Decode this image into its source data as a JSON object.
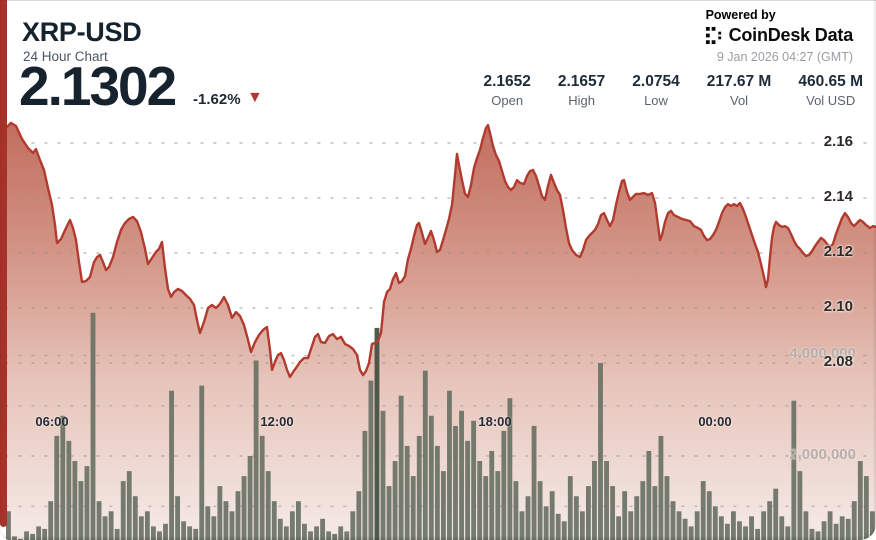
{
  "header": {
    "symbol": "XRP-USD",
    "subtitle": "24 Hour Chart",
    "price": "2.1302",
    "change": "-1.62%",
    "change_direction": "down",
    "triangle": "▼"
  },
  "brand": {
    "powered_by": "Powered by",
    "name": "CoinDesk Data",
    "timestamp": "9 Jan 2026 04:27 (GMT)"
  },
  "stats": [
    {
      "value": "2.1652",
      "label": "Open"
    },
    {
      "value": "2.1657",
      "label": "High"
    },
    {
      "value": "2.0754",
      "label": "Low"
    },
    {
      "value": "217.67 M",
      "label": "Vol"
    },
    {
      "value": "460.65 M",
      "label": "Vol USD"
    }
  ],
  "colors": {
    "accent_strip": "#a63229",
    "line": "#b23a2e",
    "volume_bar": "#6b7265",
    "volume_bar_highlight": "#41503f",
    "fill_top": "#bf6757",
    "fill_mid": "#d29384",
    "fill_low": "#e6c3b9",
    "fill_bottom": "#f5eae6",
    "grid_dot": "#9a9189",
    "change_triangle": "#b0372b"
  },
  "chart_data": {
    "type": "area",
    "title": "XRP-USD 24 Hour Chart",
    "legend": false,
    "grid": "dotted",
    "price_axis": {
      "side": "right",
      "range": [
        2.068,
        2.172
      ],
      "ticks": [
        {
          "label": "2.16",
          "value": 2.16
        },
        {
          "label": "2.14",
          "value": 2.14
        },
        {
          "label": "2.12",
          "value": 2.12
        },
        {
          "label": "2.10",
          "value": 2.1
        },
        {
          "label": "2.08",
          "value": 2.08
        }
      ]
    },
    "volume_axis": {
      "side": "right",
      "ticks": [
        {
          "label": "4,000,000",
          "value_m": 4
        },
        {
          "label": "2,000,000",
          "value_m": 2
        }
      ],
      "grid_m": [
        4,
        3,
        2,
        1
      ]
    },
    "time_axis": {
      "ticks": [
        {
          "label": "06:00",
          "f": 0.0529
        },
        {
          "label": "12:00",
          "f": 0.3115
        },
        {
          "label": "18:00",
          "f": 0.5621
        },
        {
          "label": "00:00",
          "f": 0.8149
        }
      ]
    },
    "price_series": [
      [
        0.0,
        2.1655
      ],
      [
        0.0057,
        2.1673
      ],
      [
        0.0115,
        2.1662
      ],
      [
        0.0184,
        2.1615
      ],
      [
        0.0253,
        2.1582
      ],
      [
        0.031,
        2.1564
      ],
      [
        0.0345,
        2.1578
      ],
      [
        0.0391,
        2.1538
      ],
      [
        0.0437,
        2.1502
      ],
      [
        0.0483,
        2.1436
      ],
      [
        0.0529,
        2.1375
      ],
      [
        0.0563,
        2.1302
      ],
      [
        0.0586,
        2.1236
      ],
      [
        0.0632,
        2.1251
      ],
      [
        0.069,
        2.1291
      ],
      [
        0.0736,
        2.132
      ],
      [
        0.077,
        2.1291
      ],
      [
        0.0805,
        2.1247
      ],
      [
        0.0839,
        2.1167
      ],
      [
        0.0874,
        2.1095
      ],
      [
        0.092,
        2.1098
      ],
      [
        0.0966,
        2.1113
      ],
      [
        0.1011,
        2.1167
      ],
      [
        0.1046,
        2.1185
      ],
      [
        0.108,
        2.1193
      ],
      [
        0.1115,
        2.1167
      ],
      [
        0.1149,
        2.1138
      ],
      [
        0.1184,
        2.1149
      ],
      [
        0.123,
        2.1185
      ],
      [
        0.1276,
        2.124
      ],
      [
        0.1322,
        2.1284
      ],
      [
        0.1368,
        2.1309
      ],
      [
        0.1414,
        2.1324
      ],
      [
        0.146,
        2.1331
      ],
      [
        0.1506,
        2.1316
      ],
      [
        0.1552,
        2.1276
      ],
      [
        0.1598,
        2.1215
      ],
      [
        0.1632,
        2.116
      ],
      [
        0.1678,
        2.1182
      ],
      [
        0.1724,
        2.1204
      ],
      [
        0.1759,
        2.1215
      ],
      [
        0.1793,
        2.124
      ],
      [
        0.1828,
        2.1145
      ],
      [
        0.1862,
        2.1069
      ],
      [
        0.1897,
        2.104
      ],
      [
        0.1931,
        2.1058
      ],
      [
        0.1977,
        2.1069
      ],
      [
        0.2023,
        2.1062
      ],
      [
        0.2069,
        2.1047
      ],
      [
        0.2115,
        2.1033
      ],
      [
        0.2161,
        2.1011
      ],
      [
        0.2195,
        2.0956
      ],
      [
        0.223,
        2.0909
      ],
      [
        0.2276,
        2.0949
      ],
      [
        0.2322,
        2.1
      ],
      [
        0.2368,
        2.1011
      ],
      [
        0.2414,
        2.1
      ],
      [
        0.246,
        2.1015
      ],
      [
        0.2506,
        2.104
      ],
      [
        0.2552,
        2.1011
      ],
      [
        0.2598,
        2.0964
      ],
      [
        0.2644,
        2.0985
      ],
      [
        0.269,
        2.0971
      ],
      [
        0.2736,
        2.0938
      ],
      [
        0.2782,
        2.0884
      ],
      [
        0.2816,
        2.084
      ],
      [
        0.2862,
        2.0876
      ],
      [
        0.2908,
        2.0902
      ],
      [
        0.2954,
        2.092
      ],
      [
        0.3,
        2.0931
      ],
      [
        0.3034,
        2.0847
      ],
      [
        0.3057,
        2.0775
      ],
      [
        0.3092,
        2.0804
      ],
      [
        0.3126,
        2.0829
      ],
      [
        0.3161,
        2.0836
      ],
      [
        0.3195,
        2.0811
      ],
      [
        0.323,
        2.0775
      ],
      [
        0.3264,
        2.0749
      ],
      [
        0.3299,
        2.0767
      ],
      [
        0.3333,
        2.0782
      ],
      [
        0.3379,
        2.0804
      ],
      [
        0.3425,
        2.0818
      ],
      [
        0.3471,
        2.0818
      ],
      [
        0.3506,
        2.0851
      ],
      [
        0.3552,
        2.0895
      ],
      [
        0.3586,
        2.0905
      ],
      [
        0.3621,
        2.0876
      ],
      [
        0.3667,
        2.0873
      ],
      [
        0.3713,
        2.0898
      ],
      [
        0.3759,
        2.0905
      ],
      [
        0.3805,
        2.0887
      ],
      [
        0.3851,
        2.0895
      ],
      [
        0.3897,
        2.0869
      ],
      [
        0.3943,
        2.0862
      ],
      [
        0.3989,
        2.0851
      ],
      [
        0.4034,
        2.0829
      ],
      [
        0.4069,
        2.0775
      ],
      [
        0.4103,
        2.0756
      ],
      [
        0.4138,
        2.0771
      ],
      [
        0.4172,
        2.08
      ],
      [
        0.4207,
        2.0869
      ],
      [
        0.4241,
        2.0873
      ],
      [
        0.4276,
        2.088
      ],
      [
        0.431,
        2.0909
      ],
      [
        0.4345,
        2.1022
      ],
      [
        0.4379,
        2.1058
      ],
      [
        0.4414,
        2.1069
      ],
      [
        0.4448,
        2.1105
      ],
      [
        0.4483,
        2.1127
      ],
      [
        0.4517,
        2.1091
      ],
      [
        0.4552,
        2.1098
      ],
      [
        0.4586,
        2.1116
      ],
      [
        0.4621,
        2.1178
      ],
      [
        0.4655,
        2.1215
      ],
      [
        0.469,
        2.1262
      ],
      [
        0.4724,
        2.1302
      ],
      [
        0.4747,
        2.1309
      ],
      [
        0.4782,
        2.1273
      ],
      [
        0.4816,
        2.1233
      ],
      [
        0.4851,
        2.1255
      ],
      [
        0.4885,
        2.128
      ],
      [
        0.492,
        2.1247
      ],
      [
        0.4954,
        2.1204
      ],
      [
        0.4989,
        2.1211
      ],
      [
        0.5023,
        2.1247
      ],
      [
        0.5057,
        2.1284
      ],
      [
        0.5092,
        2.1324
      ],
      [
        0.5126,
        2.1375
      ],
      [
        0.5161,
        2.1484
      ],
      [
        0.5184,
        2.156
      ],
      [
        0.5207,
        2.152
      ],
      [
        0.5241,
        2.1465
      ],
      [
        0.5276,
        2.1415
      ],
      [
        0.531,
        2.1404
      ],
      [
        0.5345,
        2.1447
      ],
      [
        0.5379,
        2.1509
      ],
      [
        0.5414,
        2.1545
      ],
      [
        0.5448,
        2.1575
      ],
      [
        0.5483,
        2.1618
      ],
      [
        0.5517,
        2.1655
      ],
      [
        0.554,
        2.1665
      ],
      [
        0.5563,
        2.1636
      ],
      [
        0.5598,
        2.1589
      ],
      [
        0.5632,
        2.1556
      ],
      [
        0.5667,
        2.1535
      ],
      [
        0.5701,
        2.1498
      ],
      [
        0.5736,
        2.1462
      ],
      [
        0.577,
        2.144
      ],
      [
        0.5805,
        2.1429
      ],
      [
        0.5839,
        2.144
      ],
      [
        0.5874,
        2.1465
      ],
      [
        0.5908,
        2.1455
      ],
      [
        0.5954,
        2.1451
      ],
      [
        0.5989,
        2.148
      ],
      [
        0.6023,
        2.1498
      ],
      [
        0.6057,
        2.1502
      ],
      [
        0.6092,
        2.148
      ],
      [
        0.6126,
        2.1444
      ],
      [
        0.6161,
        2.1407
      ],
      [
        0.6195,
        2.1393
      ],
      [
        0.623,
        2.1444
      ],
      [
        0.6264,
        2.1484
      ],
      [
        0.6299,
        2.1455
      ],
      [
        0.6333,
        2.1429
      ],
      [
        0.6368,
        2.1411
      ],
      [
        0.6402,
        2.1356
      ],
      [
        0.6437,
        2.1291
      ],
      [
        0.6471,
        2.1236
      ],
      [
        0.6506,
        2.1211
      ],
      [
        0.6552,
        2.1193
      ],
      [
        0.6598,
        2.1185
      ],
      [
        0.6632,
        2.1211
      ],
      [
        0.6667,
        2.1247
      ],
      [
        0.6701,
        2.1262
      ],
      [
        0.6736,
        2.1273
      ],
      [
        0.677,
        2.1284
      ],
      [
        0.6805,
        2.1305
      ],
      [
        0.6839,
        2.1338
      ],
      [
        0.6874,
        2.1345
      ],
      [
        0.6908,
        2.132
      ],
      [
        0.6943,
        2.1298
      ],
      [
        0.6977,
        2.132
      ],
      [
        0.7011,
        2.1375
      ],
      [
        0.7046,
        2.1422
      ],
      [
        0.708,
        2.1462
      ],
      [
        0.7103,
        2.1465
      ],
      [
        0.7138,
        2.1422
      ],
      [
        0.7172,
        2.1393
      ],
      [
        0.7207,
        2.1404
      ],
      [
        0.7241,
        2.1415
      ],
      [
        0.7287,
        2.1415
      ],
      [
        0.7333,
        2.1418
      ],
      [
        0.7379,
        2.1411
      ],
      [
        0.7425,
        2.1418
      ],
      [
        0.746,
        2.1382
      ],
      [
        0.7494,
        2.1302
      ],
      [
        0.7517,
        2.1247
      ],
      [
        0.754,
        2.1265
      ],
      [
        0.7575,
        2.1313
      ],
      [
        0.7609,
        2.1345
      ],
      [
        0.7644,
        2.1353
      ],
      [
        0.7678,
        2.1338
      ],
      [
        0.7724,
        2.1331
      ],
      [
        0.777,
        2.1324
      ],
      [
        0.7816,
        2.132
      ],
      [
        0.7862,
        2.1316
      ],
      [
        0.7908,
        2.1298
      ],
      [
        0.7954,
        2.1291
      ],
      [
        0.7989,
        2.1284
      ],
      [
        0.8023,
        2.1262
      ],
      [
        0.8057,
        2.1247
      ],
      [
        0.8092,
        2.1251
      ],
      [
        0.8126,
        2.1265
      ],
      [
        0.8161,
        2.1284
      ],
      [
        0.8195,
        2.1313
      ],
      [
        0.823,
        2.1345
      ],
      [
        0.8264,
        2.1367
      ],
      [
        0.8299,
        2.1378
      ],
      [
        0.8333,
        2.1371
      ],
      [
        0.8368,
        2.1378
      ],
      [
        0.8402,
        2.1371
      ],
      [
        0.8437,
        2.1382
      ],
      [
        0.8471,
        2.136
      ],
      [
        0.8506,
        2.1331
      ],
      [
        0.854,
        2.1298
      ],
      [
        0.8575,
        2.1265
      ],
      [
        0.8609,
        2.1233
      ],
      [
        0.8644,
        2.1204
      ],
      [
        0.8678,
        2.116
      ],
      [
        0.8713,
        2.1113
      ],
      [
        0.8736,
        2.1076
      ],
      [
        0.8759,
        2.1105
      ],
      [
        0.8782,
        2.1185
      ],
      [
        0.8805,
        2.1255
      ],
      [
        0.8828,
        2.1295
      ],
      [
        0.8851,
        2.1313
      ],
      [
        0.8885,
        2.1302
      ],
      [
        0.892,
        2.1295
      ],
      [
        0.8954,
        2.1298
      ],
      [
        0.8989,
        2.1291
      ],
      [
        0.9023,
        2.1269
      ],
      [
        0.9057,
        2.1244
      ],
      [
        0.9092,
        2.1225
      ],
      [
        0.9126,
        2.1215
      ],
      [
        0.9161,
        2.12
      ],
      [
        0.9195,
        2.1189
      ],
      [
        0.923,
        2.1193
      ],
      [
        0.9264,
        2.1207
      ],
      [
        0.9299,
        2.1225
      ],
      [
        0.9333,
        2.124
      ],
      [
        0.9368,
        2.1255
      ],
      [
        0.9402,
        2.1247
      ],
      [
        0.9437,
        2.1233
      ],
      [
        0.9471,
        2.1222
      ],
      [
        0.9506,
        2.1233
      ],
      [
        0.954,
        2.1269
      ],
      [
        0.9575,
        2.1298
      ],
      [
        0.9609,
        2.1327
      ],
      [
        0.9644,
        2.1345
      ],
      [
        0.9678,
        2.1331
      ],
      [
        0.9713,
        2.1309
      ],
      [
        0.9747,
        2.1298
      ],
      [
        0.9782,
        2.1309
      ],
      [
        0.9816,
        2.132
      ],
      [
        0.9851,
        2.1313
      ],
      [
        0.9885,
        2.1302
      ],
      [
        0.9931,
        2.1291
      ],
      [
        0.9966,
        2.1298
      ],
      [
        1.0,
        2.1295
      ]
    ],
    "volume_series_m": [
      0.9,
      0.4,
      0.35,
      0.5,
      0.45,
      0.6,
      0.55,
      1.1,
      2.4,
      2.8,
      2.3,
      1.9,
      1.5,
      1.8,
      4.85,
      1.1,
      0.8,
      0.9,
      0.55,
      1.5,
      1.7,
      1.2,
      0.8,
      0.9,
      0.6,
      0.5,
      0.65,
      3.3,
      1.2,
      0.7,
      0.6,
      0.55,
      3.4,
      1.0,
      0.8,
      1.4,
      1.1,
      0.9,
      1.3,
      1.6,
      2.0,
      3.9,
      2.4,
      1.7,
      1.1,
      0.75,
      0.6,
      0.9,
      1.1,
      0.65,
      0.5,
      0.6,
      0.75,
      0.5,
      0.45,
      0.6,
      0.5,
      0.9,
      1.3,
      2.5,
      3.5,
      4.55,
      2.9,
      1.4,
      1.9,
      3.2,
      2.2,
      1.6,
      2.4,
      3.7,
      2.8,
      2.2,
      1.7,
      3.3,
      2.6,
      2.9,
      2.3,
      2.7,
      1.9,
      1.6,
      2.1,
      1.7,
      2.5,
      3.15,
      1.5,
      0.9,
      1.2,
      2.6,
      1.5,
      1.0,
      1.3,
      0.85,
      0.7,
      1.6,
      1.2,
      0.9,
      1.4,
      1.9,
      3.85,
      1.9,
      1.4,
      0.8,
      1.3,
      0.9,
      1.2,
      1.5,
      2.1,
      1.4,
      2.4,
      1.6,
      1.1,
      0.9,
      0.75,
      0.6,
      0.9,
      1.5,
      1.3,
      1.0,
      0.8,
      0.65,
      0.9,
      0.7,
      0.6,
      0.8,
      0.55,
      0.9,
      1.1,
      1.35,
      0.8,
      0.6,
      3.1,
      1.7,
      0.9,
      0.55,
      0.5,
      0.7,
      0.9,
      0.65,
      0.8,
      0.75,
      1.1,
      1.9,
      1.6,
      0.9
    ],
    "highlight_volume_index": 61
  }
}
